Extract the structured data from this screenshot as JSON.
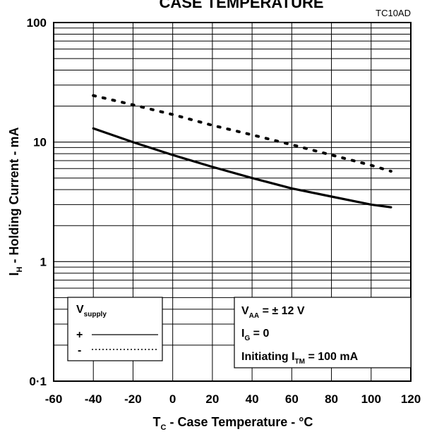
{
  "chart_data": {
    "type": "line",
    "title": "CASE TEMPERATURE",
    "figure_code": "TC10AD",
    "xlabel": {
      "main": "T",
      "sub": "C",
      "rest": " - Case Temperature - °C"
    },
    "ylabel": {
      "main": "I",
      "sub": "H",
      "rest": " - Holding Current - mA"
    },
    "xlim": [
      -60,
      120
    ],
    "ylim": [
      0.1,
      100
    ],
    "yscale": "log",
    "grid": true,
    "x_ticks": [
      "-60",
      "-40",
      "-20",
      "0",
      "20",
      "40",
      "60",
      "80",
      "100",
      "120"
    ],
    "y_ticks": [
      "0·1",
      "1",
      "10",
      "100"
    ],
    "series": [
      {
        "name": "+",
        "style": "solid",
        "x": [
          -40,
          -20,
          0,
          20,
          40,
          60,
          80,
          100,
          110
        ],
        "y": [
          13,
          10,
          7.8,
          6.2,
          5.0,
          4.1,
          3.5,
          3.0,
          2.85
        ]
      },
      {
        "name": "-",
        "style": "dotted",
        "x": [
          -40,
          -20,
          0,
          20,
          40,
          60,
          80,
          100,
          110
        ],
        "y": [
          24.5,
          20.5,
          17,
          13.8,
          11.5,
          9.5,
          7.8,
          6.4,
          5.7
        ]
      }
    ],
    "legend": {
      "title": "V",
      "title_sub": "supply",
      "position": "bottom-left"
    },
    "conditions": [
      {
        "main": "V",
        "sub": "AA",
        "rest": " = ± 12 V"
      },
      {
        "main": "I",
        "sub": "G",
        "rest": " = 0"
      },
      {
        "main": "Initiating I",
        "sub": "TM",
        "rest": " = 100 mA"
      }
    ]
  }
}
